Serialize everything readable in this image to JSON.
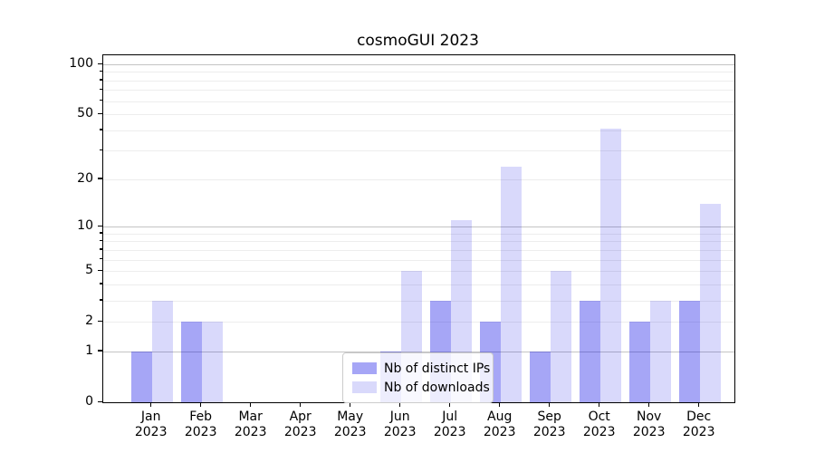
{
  "title": "cosmoGUI 2023",
  "colors": {
    "ips_bar": "rgba(0,0,230,0.35)",
    "downloads_bar": "rgba(0,0,230,0.15)",
    "ips_bar_hex": "#a6a6f6",
    "downloads_bar_hex": "#d9d9fb",
    "grid_major": "#c4c4c4",
    "grid_minor": "#ededed",
    "axis": "#000000"
  },
  "legend": {
    "items": [
      {
        "label": "Nb of distinct IPs",
        "series": "ips"
      },
      {
        "label": "Nb of downloads",
        "series": "downloads"
      }
    ]
  },
  "chart_data": {
    "type": "bar",
    "title": "cosmoGUI 2023",
    "categories": [
      "Jan 2023",
      "Feb 2023",
      "Mar 2023",
      "Apr 2023",
      "May 2023",
      "Jun 2023",
      "Jul 2023",
      "Aug 2023",
      "Sep 2023",
      "Oct 2023",
      "Nov 2023",
      "Dec 2023"
    ],
    "series": [
      {
        "name": "Nb of distinct IPs",
        "values": [
          1,
          2,
          0,
          0,
          0,
          1,
          3,
          2,
          1,
          3,
          2,
          3
        ]
      },
      {
        "name": "Nb of downloads",
        "values": [
          3,
          2,
          0,
          0,
          0,
          5,
          11,
          24,
          5,
          41,
          3,
          14
        ]
      }
    ],
    "xlabel": "",
    "ylabel": "",
    "yscale": "log1p",
    "yticks": [
      0,
      1,
      2,
      5,
      10,
      20,
      50,
      100
    ],
    "minor_gridlines": [
      2,
      3,
      4,
      5,
      6,
      7,
      8,
      9,
      20,
      30,
      40,
      50,
      60,
      70,
      80,
      90
    ],
    "major_gridlines": [
      1,
      10,
      100
    ],
    "ylim": [
      0,
      113
    ],
    "grid": "horizontal",
    "legend_position": "lower center"
  }
}
